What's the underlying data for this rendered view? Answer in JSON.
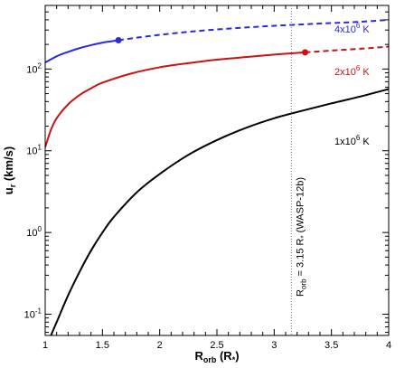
{
  "chart_data": {
    "type": "line",
    "title": "",
    "xlabel": {
      "main": "R",
      "sub": "orb",
      "unit": " (R",
      "unit_sub": "*",
      "unit_close": ")"
    },
    "ylabel": {
      "main": "u",
      "sub": "r",
      "unit": " (km/s)"
    },
    "x_scale": "linear",
    "y_scale": "log",
    "xlim": [
      1,
      4
    ],
    "ylim": [
      0.055,
      600
    ],
    "x_ticks": [
      1,
      1.5,
      2,
      2.5,
      3,
      3.5,
      4
    ],
    "x_tick_labels": [
      "1",
      "1.5",
      "2",
      "2.5",
      "3",
      "3.5",
      "4"
    ],
    "y_ticks": [
      {
        "value": 0.1,
        "base": "10",
        "exp": "-1"
      },
      {
        "value": 1,
        "base": "10",
        "exp": "0"
      },
      {
        "value": 10,
        "base": "10",
        "exp": "1"
      },
      {
        "value": 100,
        "base": "10",
        "exp": "2"
      }
    ],
    "grid": false,
    "series": [
      {
        "name": "4x10^6 K",
        "label_parts": {
          "pre": "4x10",
          "exp": "6",
          "post": " K"
        },
        "color": "#2a2ae0",
        "x": [
          1.0,
          1.1,
          1.2,
          1.3,
          1.4,
          1.5,
          1.64,
          1.8,
          2.0,
          2.25,
          2.5,
          2.75,
          3.0,
          3.25,
          3.5,
          3.75,
          4.0
        ],
        "y": [
          120,
          143,
          162,
          180,
          196,
          210,
          225,
          242,
          262,
          285,
          305,
          322,
          338,
          352,
          365,
          378,
          400
        ],
        "solid_until": 1.64,
        "marker": {
          "x": 1.64,
          "y": 225
        }
      },
      {
        "name": "2x10^6 K",
        "label_parts": {
          "pre": "2x10",
          "exp": "6",
          "post": " K"
        },
        "color": "#cc1111",
        "x": [
          1.0,
          1.05,
          1.1,
          1.2,
          1.3,
          1.4,
          1.5,
          1.75,
          2.0,
          2.25,
          2.5,
          2.75,
          3.0,
          3.27,
          3.5,
          3.75,
          4.0
        ],
        "y": [
          11,
          18,
          25,
          37,
          48,
          58,
          68,
          88,
          105,
          118,
          130,
          140,
          150,
          160,
          168,
          177,
          188
        ],
        "solid_until": 3.27,
        "marker": {
          "x": 3.27,
          "y": 160
        }
      },
      {
        "name": "1x10^6 K",
        "label_parts": {
          "pre": "1x10",
          "exp": "6",
          "post": " K"
        },
        "color": "#000000",
        "x": [
          1.05,
          1.1,
          1.2,
          1.3,
          1.4,
          1.5,
          1.6,
          1.8,
          2.0,
          2.25,
          2.5,
          2.75,
          3.0,
          3.25,
          3.5,
          3.75,
          4.0
        ],
        "y": [
          0.055,
          0.08,
          0.17,
          0.33,
          0.6,
          1.0,
          1.55,
          3.1,
          5.2,
          8.9,
          13.5,
          19,
          25,
          31,
          38,
          46,
          57
        ],
        "solid_until": 4.0,
        "marker": null
      }
    ],
    "annotations": [
      {
        "type": "vline",
        "x": 3.15,
        "color": "#808080",
        "style": "dotted"
      },
      {
        "type": "text",
        "for_vline": true,
        "text": "R = 3.15 R (WASP-12b)",
        "parts": [
          "R",
          "orb",
          " = 3.15 R",
          "*",
          " (WASP-12b)"
        ]
      }
    ]
  }
}
